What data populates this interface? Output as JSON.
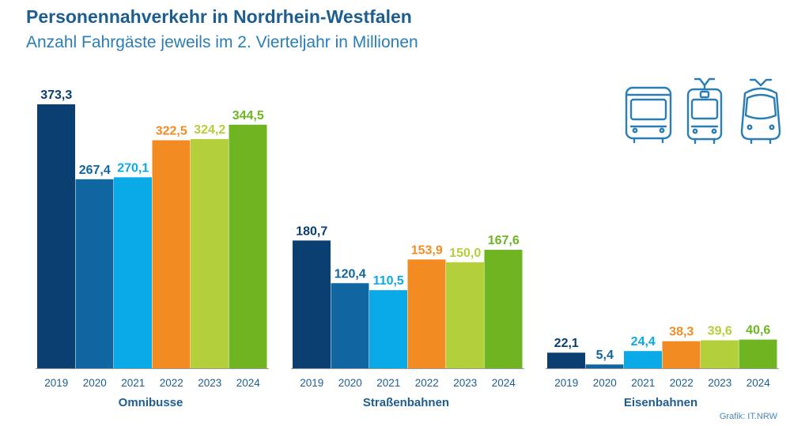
{
  "title": "Personennahverkehr in Nordrhein-Westfalen",
  "subtitle": "Anzahl Fahrgäste jeweils im 2. Vierteljahr in Millionen",
  "source": "Grafik: IT.NRW",
  "icons": [
    "bus-icon",
    "tram-icon",
    "light-rail-icon"
  ],
  "colors": {
    "2019": "#0b3f72",
    "2020": "#0f66a0",
    "2021": "#0aaae6",
    "2022": "#f28c22",
    "2023": "#b3cf3b",
    "2024": "#6fb521",
    "icon": "#2a7db5",
    "axis": "#999999"
  },
  "chart_data": {
    "type": "bar",
    "grid": false,
    "ylim": [
      0,
      373.3
    ],
    "groups": [
      "Omnibusse",
      "Straßenbahnen",
      "Eisenbahnen"
    ],
    "categories": [
      "2019",
      "2020",
      "2021",
      "2022",
      "2023",
      "2024"
    ],
    "series": [
      {
        "group": "Omnibusse",
        "values": [
          373.3,
          267.4,
          270.1,
          322.5,
          324.2,
          344.5
        ],
        "labels": [
          "373,3",
          "267,4",
          "270,1",
          "322,5",
          "324,2",
          "344,5"
        ]
      },
      {
        "group": "Straßenbahnen",
        "values": [
          180.7,
          120.4,
          110.5,
          153.9,
          150.0,
          167.6
        ],
        "labels": [
          "180,7",
          "120,4",
          "110,5",
          "153,9",
          "150,0",
          "167,6"
        ]
      },
      {
        "group": "Eisenbahnen",
        "values": [
          22.1,
          5.4,
          24.4,
          38.3,
          39.6,
          40.6
        ],
        "labels": [
          "22,1",
          "5,4",
          "24,4",
          "38,3",
          "39,6",
          "40,6"
        ]
      }
    ]
  }
}
